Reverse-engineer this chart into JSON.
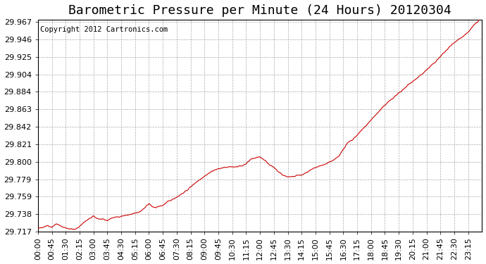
{
  "title": "Barometric Pressure per Minute (24 Hours) 20120304",
  "copyright_text": "Copyright 2012 Cartronics.com",
  "line_color": "#cc0000",
  "background_color": "#ffffff",
  "plot_bg_color": "#ffffff",
  "grid_color": "#aaaaaa",
  "y_min": 29.717,
  "y_max": 29.967,
  "y_ticks": [
    29.717,
    29.738,
    29.759,
    29.779,
    29.8,
    29.821,
    29.842,
    29.863,
    29.884,
    29.904,
    29.925,
    29.946,
    29.967
  ],
  "x_tick_labels": [
    "00:00",
    "00:45",
    "01:30",
    "02:15",
    "03:00",
    "03:45",
    "04:30",
    "05:15",
    "06:00",
    "06:45",
    "07:30",
    "08:15",
    "09:00",
    "09:45",
    "10:30",
    "11:15",
    "12:00",
    "12:45",
    "13:30",
    "14:15",
    "15:00",
    "15:45",
    "16:30",
    "17:15",
    "18:00",
    "18:45",
    "19:30",
    "20:15",
    "21:00",
    "21:45",
    "22:30",
    "23:15"
  ],
  "waypoints_t": [
    0.0,
    0.5,
    0.75,
    1.0,
    1.25,
    1.5,
    2.0,
    2.25,
    2.5,
    3.0,
    3.25,
    3.75,
    4.0,
    4.5,
    5.0,
    5.5,
    6.0,
    6.25,
    6.75,
    7.0,
    7.5,
    8.0,
    8.5,
    9.0,
    9.5,
    10.0,
    10.5,
    11.0,
    11.25,
    11.5,
    11.75,
    12.0,
    12.25,
    12.5,
    12.75,
    13.0,
    13.25,
    13.5,
    13.75,
    14.0,
    14.25,
    14.5,
    15.0,
    15.5,
    15.75,
    16.0,
    16.25,
    16.5,
    16.75,
    17.0,
    17.25,
    17.5,
    18.0,
    18.5,
    19.0,
    19.5,
    20.0,
    20.5,
    21.0,
    21.5,
    22.0,
    22.5,
    22.75,
    23.0,
    23.25,
    23.5,
    23.75,
    24.0
  ],
  "waypoints_p": [
    29.72,
    29.724,
    29.722,
    29.726,
    29.723,
    29.721,
    29.719,
    29.723,
    29.728,
    29.735,
    29.732,
    29.73,
    29.733,
    29.735,
    29.737,
    29.74,
    29.75,
    29.745,
    29.748,
    29.752,
    29.758,
    29.765,
    29.775,
    29.783,
    29.79,
    29.793,
    29.794,
    29.795,
    29.798,
    29.803,
    29.805,
    29.806,
    29.802,
    29.797,
    29.793,
    29.788,
    29.784,
    29.782,
    29.782,
    29.784,
    29.784,
    29.787,
    29.793,
    29.797,
    29.8,
    29.802,
    29.807,
    29.815,
    29.823,
    29.826,
    29.832,
    29.838,
    29.85,
    29.862,
    29.873,
    29.882,
    29.892,
    29.9,
    29.91,
    29.92,
    29.932,
    29.943,
    29.947,
    29.95,
    29.955,
    29.962,
    29.967,
    29.975
  ],
  "title_fontsize": 13,
  "tick_fontsize": 8,
  "copyright_fontsize": 7.5,
  "noise_seed": 42,
  "noise_std": 0.0008,
  "noise_sigma": 2
}
